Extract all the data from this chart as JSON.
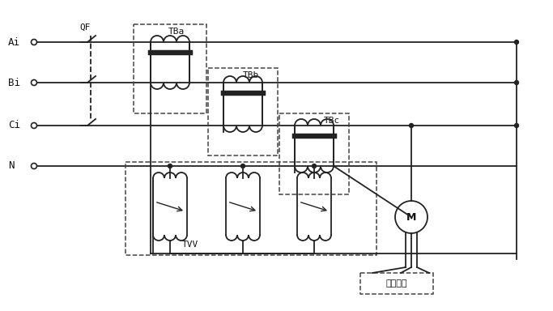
{
  "background": "#ffffff",
  "line_color": "#222222",
  "dashed_color": "#444444",
  "text_color": "#111111",
  "labels_left": [
    "Ai",
    "Bi",
    "Ci",
    "N"
  ],
  "QF_label": "QF",
  "TBa_label": "TBa",
  "TBb_label": "TBb",
  "TBc_label": "TBc",
  "TVV_label": "TVV",
  "M_label": "M",
  "ctrl_label": "控制系统"
}
